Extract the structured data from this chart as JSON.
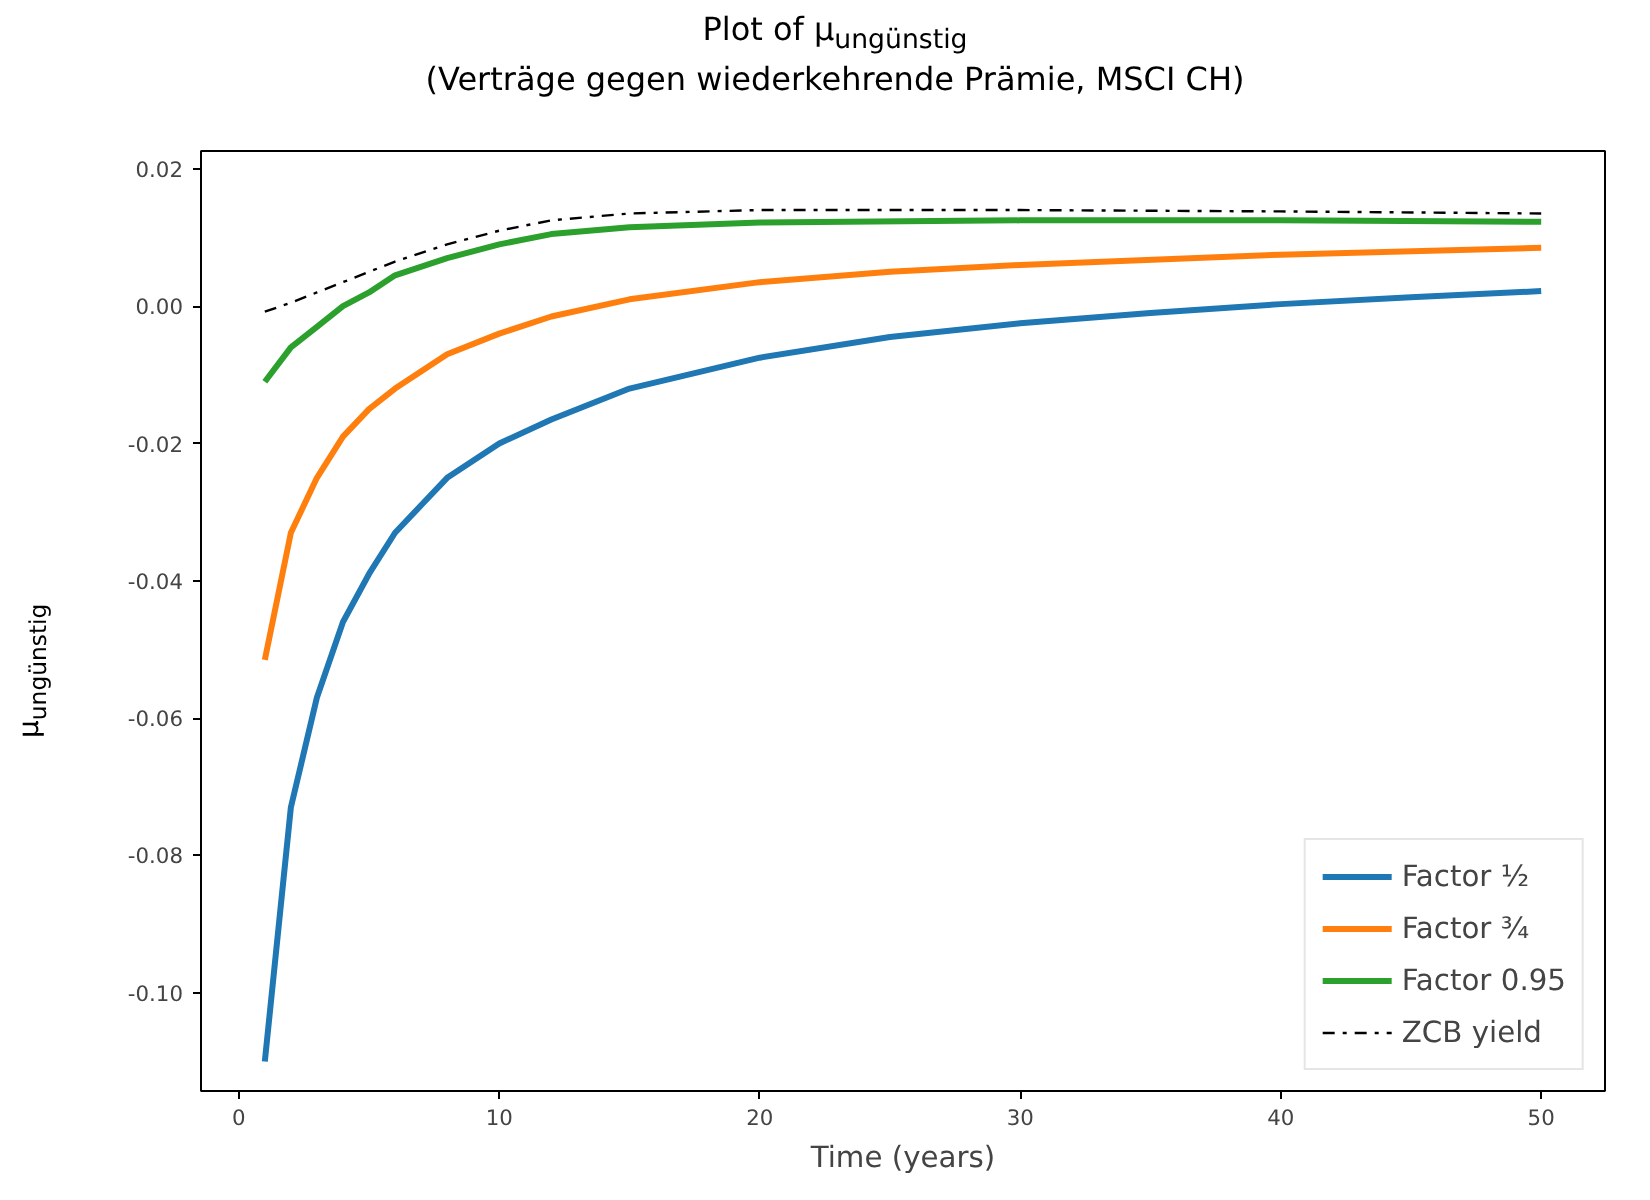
{
  "chart_data": {
    "type": "line",
    "title": "Plot of μ$_{ungünstig}$\n(Verträge gegen wiederkehrende Prämie, MSCI CH)",
    "xlabel": "Time (years)",
    "ylabel": "μ$_{ungünstig}$",
    "xlim": [
      -1.45,
      52.45
    ],
    "ylim": [
      -0.1143,
      0.0226
    ],
    "xticks": [
      0,
      10,
      20,
      30,
      40,
      50
    ],
    "yticks": [
      {
        "value": 0.02,
        "label": "0.02"
      },
      {
        "value": 0.0,
        "label": "0.00"
      },
      {
        "value": -0.02,
        "label": "-0.02"
      },
      {
        "value": -0.04,
        "label": "-0.04"
      },
      {
        "value": -0.06,
        "label": "-0.06"
      },
      {
        "value": -0.08,
        "label": "-0.08"
      },
      {
        "value": -0.1,
        "label": "-0.10"
      }
    ],
    "grid": false,
    "legend": "bottom right",
    "marker": "none",
    "series": [
      {
        "name": "Factor ½",
        "color": "#1f77b4",
        "line_style": "solid",
        "x": [
          1,
          2,
          3,
          4,
          5,
          6,
          7,
          8,
          10,
          12,
          15,
          20,
          25,
          30,
          35,
          40,
          45,
          50
        ],
        "values": [
          -0.11,
          -0.073,
          -0.057,
          -0.046,
          -0.039,
          -0.033,
          -0.029,
          -0.025,
          -0.02,
          -0.0165,
          -0.012,
          -0.0075,
          -0.0045,
          -0.0025,
          -0.001,
          0.0003,
          0.0013,
          0.0022
        ]
      },
      {
        "name": "Factor ¾",
        "color": "#ff7f0e",
        "line_style": "solid",
        "x": [
          1,
          2,
          3,
          4,
          5,
          6,
          8,
          10,
          12,
          15,
          20,
          25,
          30,
          40,
          50
        ],
        "values": [
          -0.0515,
          -0.033,
          -0.025,
          -0.019,
          -0.015,
          -0.012,
          -0.007,
          -0.004,
          -0.0015,
          0.001,
          0.0035,
          0.005,
          0.006,
          0.0075,
          0.0085
        ]
      },
      {
        "name": "Factor 0.95",
        "color": "#2ca02c",
        "line_style": "solid",
        "x": [
          1,
          2,
          3,
          4,
          5,
          6,
          8,
          10,
          12,
          15,
          20,
          30,
          40,
          50
        ],
        "values": [
          -0.011,
          -0.006,
          -0.003,
          0.0,
          0.002,
          0.0045,
          0.007,
          0.009,
          0.0105,
          0.0115,
          0.0122,
          0.0125,
          0.0125,
          0.0123
        ]
      },
      {
        "name": "ZCB yield",
        "color": "#000000",
        "line_style": "dashed",
        "x": [
          1,
          2,
          3,
          4,
          5,
          6,
          8,
          10,
          12,
          15,
          20,
          30,
          40,
          50
        ],
        "values": [
          -0.0008,
          0.0005,
          0.002,
          0.0035,
          0.005,
          0.0065,
          0.009,
          0.011,
          0.0125,
          0.0135,
          0.014,
          0.014,
          0.0138,
          0.0135
        ]
      }
    ]
  }
}
